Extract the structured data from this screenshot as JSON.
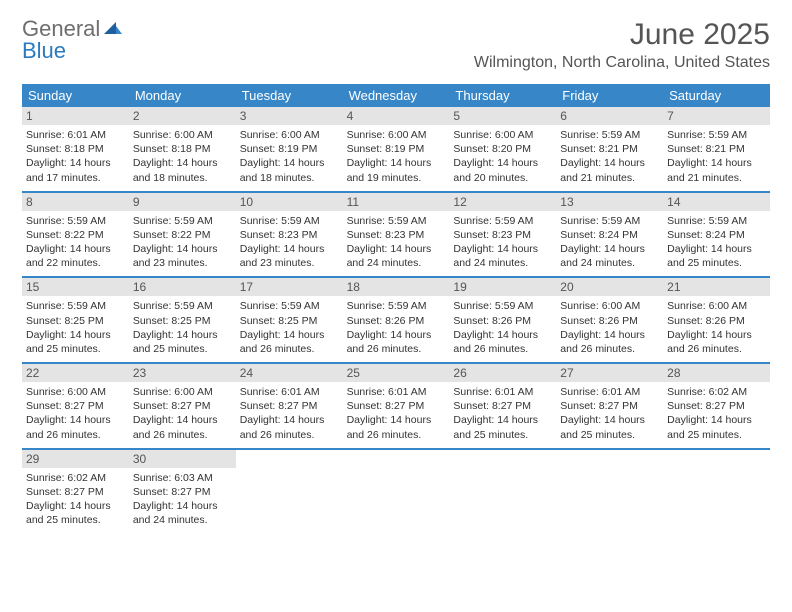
{
  "logo": {
    "line1": "General",
    "line2": "Blue"
  },
  "title": "June 2025",
  "location": "Wilmington, North Carolina, United States",
  "colors": {
    "header_bg": "#3787c8",
    "header_text": "#ffffff",
    "daynum_bg": "#e4e4e4",
    "border": "#3787c8",
    "logo_gray": "#6e6e6e",
    "logo_blue": "#2a7bbf"
  },
  "dow": [
    "Sunday",
    "Monday",
    "Tuesday",
    "Wednesday",
    "Thursday",
    "Friday",
    "Saturday"
  ],
  "weeks": [
    [
      {
        "n": "1",
        "sr": "6:01 AM",
        "ss": "8:18 PM",
        "dl": "14 hours and 17 minutes."
      },
      {
        "n": "2",
        "sr": "6:00 AM",
        "ss": "8:18 PM",
        "dl": "14 hours and 18 minutes."
      },
      {
        "n": "3",
        "sr": "6:00 AM",
        "ss": "8:19 PM",
        "dl": "14 hours and 18 minutes."
      },
      {
        "n": "4",
        "sr": "6:00 AM",
        "ss": "8:19 PM",
        "dl": "14 hours and 19 minutes."
      },
      {
        "n": "5",
        "sr": "6:00 AM",
        "ss": "8:20 PM",
        "dl": "14 hours and 20 minutes."
      },
      {
        "n": "6",
        "sr": "5:59 AM",
        "ss": "8:21 PM",
        "dl": "14 hours and 21 minutes."
      },
      {
        "n": "7",
        "sr": "5:59 AM",
        "ss": "8:21 PM",
        "dl": "14 hours and 21 minutes."
      }
    ],
    [
      {
        "n": "8",
        "sr": "5:59 AM",
        "ss": "8:22 PM",
        "dl": "14 hours and 22 minutes."
      },
      {
        "n": "9",
        "sr": "5:59 AM",
        "ss": "8:22 PM",
        "dl": "14 hours and 23 minutes."
      },
      {
        "n": "10",
        "sr": "5:59 AM",
        "ss": "8:23 PM",
        "dl": "14 hours and 23 minutes."
      },
      {
        "n": "11",
        "sr": "5:59 AM",
        "ss": "8:23 PM",
        "dl": "14 hours and 24 minutes."
      },
      {
        "n": "12",
        "sr": "5:59 AM",
        "ss": "8:23 PM",
        "dl": "14 hours and 24 minutes."
      },
      {
        "n": "13",
        "sr": "5:59 AM",
        "ss": "8:24 PM",
        "dl": "14 hours and 24 minutes."
      },
      {
        "n": "14",
        "sr": "5:59 AM",
        "ss": "8:24 PM",
        "dl": "14 hours and 25 minutes."
      }
    ],
    [
      {
        "n": "15",
        "sr": "5:59 AM",
        "ss": "8:25 PM",
        "dl": "14 hours and 25 minutes."
      },
      {
        "n": "16",
        "sr": "5:59 AM",
        "ss": "8:25 PM",
        "dl": "14 hours and 25 minutes."
      },
      {
        "n": "17",
        "sr": "5:59 AM",
        "ss": "8:25 PM",
        "dl": "14 hours and 26 minutes."
      },
      {
        "n": "18",
        "sr": "5:59 AM",
        "ss": "8:26 PM",
        "dl": "14 hours and 26 minutes."
      },
      {
        "n": "19",
        "sr": "5:59 AM",
        "ss": "8:26 PM",
        "dl": "14 hours and 26 minutes."
      },
      {
        "n": "20",
        "sr": "6:00 AM",
        "ss": "8:26 PM",
        "dl": "14 hours and 26 minutes."
      },
      {
        "n": "21",
        "sr": "6:00 AM",
        "ss": "8:26 PM",
        "dl": "14 hours and 26 minutes."
      }
    ],
    [
      {
        "n": "22",
        "sr": "6:00 AM",
        "ss": "8:27 PM",
        "dl": "14 hours and 26 minutes."
      },
      {
        "n": "23",
        "sr": "6:00 AM",
        "ss": "8:27 PM",
        "dl": "14 hours and 26 minutes."
      },
      {
        "n": "24",
        "sr": "6:01 AM",
        "ss": "8:27 PM",
        "dl": "14 hours and 26 minutes."
      },
      {
        "n": "25",
        "sr": "6:01 AM",
        "ss": "8:27 PM",
        "dl": "14 hours and 26 minutes."
      },
      {
        "n": "26",
        "sr": "6:01 AM",
        "ss": "8:27 PM",
        "dl": "14 hours and 25 minutes."
      },
      {
        "n": "27",
        "sr": "6:01 AM",
        "ss": "8:27 PM",
        "dl": "14 hours and 25 minutes."
      },
      {
        "n": "28",
        "sr": "6:02 AM",
        "ss": "8:27 PM",
        "dl": "14 hours and 25 minutes."
      }
    ],
    [
      {
        "n": "29",
        "sr": "6:02 AM",
        "ss": "8:27 PM",
        "dl": "14 hours and 25 minutes."
      },
      {
        "n": "30",
        "sr": "6:03 AM",
        "ss": "8:27 PM",
        "dl": "14 hours and 24 minutes."
      },
      null,
      null,
      null,
      null,
      null
    ]
  ],
  "labels": {
    "sunrise": "Sunrise:",
    "sunset": "Sunset:",
    "daylight": "Daylight:"
  }
}
